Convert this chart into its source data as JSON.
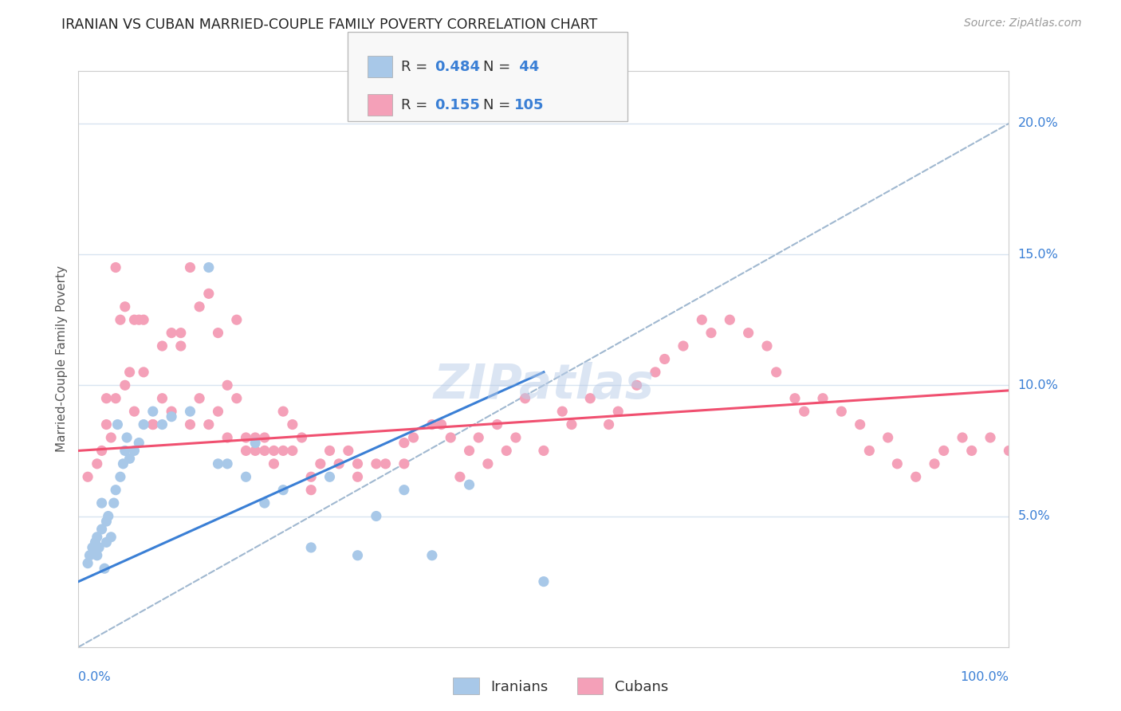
{
  "title": "IRANIAN VS CUBAN MARRIED-COUPLE FAMILY POVERTY CORRELATION CHART",
  "source": "Source: ZipAtlas.com",
  "ylabel": "Married-Couple Family Poverty",
  "watermark": "ZIPatlas",
  "legend_iranian_R": "0.484",
  "legend_iranian_N": "44",
  "legend_cuban_R": "0.155",
  "legend_cuban_N": "105",
  "iranian_color": "#a8c8e8",
  "cuban_color": "#f4a0b8",
  "iranian_line_color": "#3a7fd5",
  "cuban_line_color": "#f05070",
  "dashed_line_color": "#a0b8d0",
  "background_color": "#ffffff",
  "grid_color": "#d8e4f0",
  "title_color": "#222222",
  "axis_label_color": "#3a7fd5",
  "axis_tick_color": "#3a7fd5",
  "source_color": "#999999",
  "ylabel_color": "#555555",
  "iranians_x": [
    1.0,
    1.2,
    1.5,
    1.8,
    2.0,
    2.0,
    2.2,
    2.5,
    2.5,
    2.8,
    3.0,
    3.0,
    3.2,
    3.5,
    3.8,
    4.0,
    4.2,
    4.5,
    4.8,
    5.0,
    5.2,
    5.5,
    6.0,
    6.5,
    7.0,
    8.0,
    9.0,
    10.0,
    12.0,
    14.0,
    15.0,
    16.0,
    18.0,
    19.0,
    20.0,
    22.0,
    25.0,
    27.0,
    30.0,
    32.0,
    35.0,
    38.0,
    42.0,
    50.0
  ],
  "iranians_y": [
    3.2,
    3.5,
    3.8,
    4.0,
    3.5,
    4.2,
    3.8,
    4.5,
    5.5,
    3.0,
    4.0,
    4.8,
    5.0,
    4.2,
    5.5,
    6.0,
    8.5,
    6.5,
    7.0,
    7.5,
    8.0,
    7.2,
    7.5,
    7.8,
    8.5,
    9.0,
    8.5,
    8.8,
    9.0,
    14.5,
    7.0,
    7.0,
    6.5,
    7.8,
    5.5,
    6.0,
    3.8,
    6.5,
    3.5,
    5.0,
    6.0,
    3.5,
    6.2,
    2.5
  ],
  "cubans_x": [
    1.0,
    2.0,
    2.5,
    3.0,
    3.5,
    4.0,
    4.5,
    5.0,
    5.5,
    6.0,
    6.5,
    7.0,
    8.0,
    9.0,
    10.0,
    11.0,
    12.0,
    13.0,
    14.0,
    15.0,
    16.0,
    17.0,
    18.0,
    19.0,
    20.0,
    21.0,
    22.0,
    23.0,
    24.0,
    25.0,
    26.0,
    27.0,
    28.0,
    29.0,
    30.0,
    32.0,
    33.0,
    35.0,
    36.0,
    38.0,
    39.0,
    40.0,
    41.0,
    42.0,
    43.0,
    44.0,
    45.0,
    46.0,
    47.0,
    48.0,
    50.0,
    52.0,
    53.0,
    55.0,
    57.0,
    58.0,
    60.0,
    62.0,
    63.0,
    65.0,
    67.0,
    68.0,
    70.0,
    72.0,
    74.0,
    75.0,
    77.0,
    78.0,
    80.0,
    82.0,
    84.0,
    85.0,
    87.0,
    88.0,
    90.0,
    92.0,
    93.0,
    95.0,
    96.0,
    98.0,
    100.0,
    3.0,
    4.0,
    5.0,
    6.0,
    7.0,
    8.0,
    9.0,
    10.0,
    11.0,
    12.0,
    13.0,
    14.0,
    15.0,
    16.0,
    17.0,
    18.0,
    19.0,
    20.0,
    21.0,
    22.0,
    23.0,
    25.0,
    30.0,
    35.0
  ],
  "cubans_y": [
    6.5,
    7.0,
    7.5,
    8.5,
    8.0,
    9.5,
    12.5,
    13.0,
    10.5,
    9.0,
    12.5,
    12.5,
    8.5,
    11.5,
    9.0,
    12.0,
    8.5,
    9.5,
    8.5,
    9.0,
    8.0,
    9.5,
    8.0,
    7.5,
    8.0,
    7.5,
    9.0,
    7.5,
    8.0,
    6.5,
    7.0,
    7.5,
    7.0,
    7.5,
    7.0,
    7.0,
    7.0,
    7.8,
    8.0,
    8.5,
    8.5,
    8.0,
    6.5,
    7.5,
    8.0,
    7.0,
    8.5,
    7.5,
    8.0,
    9.5,
    7.5,
    9.0,
    8.5,
    9.5,
    8.5,
    9.0,
    10.0,
    10.5,
    11.0,
    11.5,
    12.5,
    12.0,
    12.5,
    12.0,
    11.5,
    10.5,
    9.5,
    9.0,
    9.5,
    9.0,
    8.5,
    7.5,
    8.0,
    7.0,
    6.5,
    7.0,
    7.5,
    8.0,
    7.5,
    8.0,
    7.5,
    9.5,
    14.5,
    10.0,
    12.5,
    10.5,
    8.5,
    9.5,
    12.0,
    11.5,
    14.5,
    13.0,
    13.5,
    12.0,
    10.0,
    12.5,
    7.5,
    8.0,
    7.5,
    7.0,
    7.5,
    8.5,
    6.0,
    6.5,
    7.0
  ],
  "xlim": [
    0,
    100
  ],
  "ylim": [
    0,
    22
  ],
  "xtick_label_left": "0.0%",
  "xtick_label_right": "100.0%",
  "ytick_vals": [
    5,
    10,
    15,
    20
  ],
  "ytick_labels": [
    "5.0%",
    "10.0%",
    "15.0%",
    "20.0%"
  ],
  "iranian_line_x": [
    0,
    50
  ],
  "iranian_line_y": [
    2.5,
    10.5
  ],
  "cuban_line_x": [
    0,
    100
  ],
  "cuban_line_y": [
    7.5,
    9.8
  ]
}
